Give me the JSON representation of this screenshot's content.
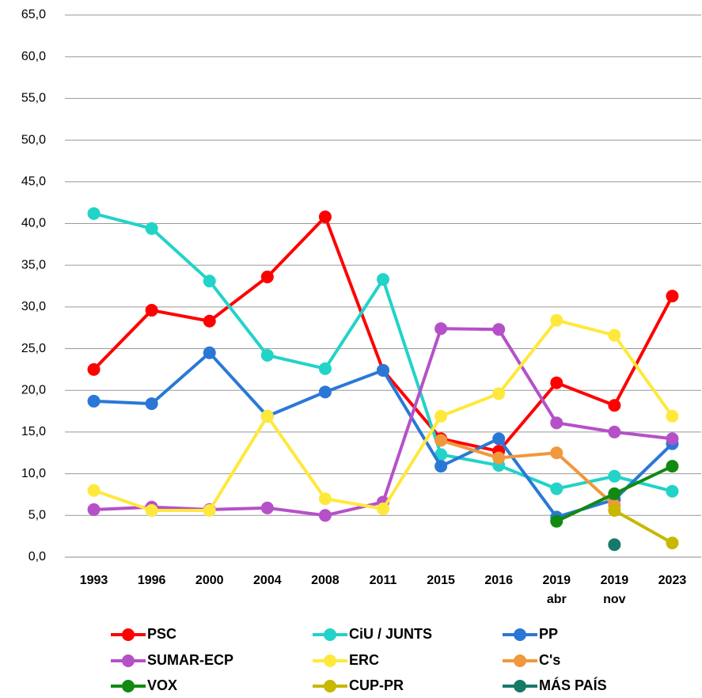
{
  "chart_data": {
    "type": "line",
    "categories": [
      "1993",
      "1996",
      "2000",
      "2004",
      "2008",
      "2011",
      "2015",
      "2016",
      "2019 abr",
      "2019 nov",
      "2023"
    ],
    "ylim": [
      0,
      65
    ],
    "yticks": [
      {
        "value": 0,
        "label": "0,0"
      },
      {
        "value": 5,
        "label": "5,0"
      },
      {
        "value": 10,
        "label": "10,0"
      },
      {
        "value": 15,
        "label": "15,0"
      },
      {
        "value": 20,
        "label": "20,0"
      },
      {
        "value": 25,
        "label": "25,0"
      },
      {
        "value": 30,
        "label": "30,0"
      },
      {
        "value": 35,
        "label": "35,0"
      },
      {
        "value": 40,
        "label": "40,0"
      },
      {
        "value": 45,
        "label": "45,0"
      },
      {
        "value": 50,
        "label": "50,0"
      },
      {
        "value": 55,
        "label": "55,0"
      },
      {
        "value": 60,
        "label": "60,0"
      },
      {
        "value": 65,
        "label": "65,0"
      }
    ],
    "grid": true,
    "legend": "bottom",
    "series": [
      {
        "name": "PSC",
        "color": "#ff0000",
        "values": [
          22.5,
          29.6,
          28.3,
          33.6,
          40.8,
          22.4,
          14.2,
          12.7,
          20.9,
          18.2,
          31.3
        ]
      },
      {
        "name": "CiU / JUNTS",
        "color": "#22d3c8",
        "values": [
          41.2,
          39.4,
          33.1,
          24.2,
          22.6,
          33.3,
          12.3,
          11.0,
          8.2,
          9.7,
          7.9
        ]
      },
      {
        "name": "PP",
        "color": "#2a78d6",
        "values": [
          18.7,
          18.4,
          24.5,
          16.9,
          19.8,
          22.4,
          10.9,
          14.2,
          4.8,
          6.9,
          13.6
        ]
      },
      {
        "name": "SUMAR-ECP",
        "color": "#b650c8",
        "values": [
          5.7,
          6.0,
          5.7,
          5.9,
          5.0,
          6.6,
          27.4,
          27.3,
          16.1,
          15.0,
          14.2
        ]
      },
      {
        "name": "ERC",
        "color": "#ffe83c",
        "values": [
          8.0,
          5.6,
          5.6,
          16.9,
          7.0,
          5.8,
          16.9,
          19.6,
          28.4,
          26.6,
          16.9
        ]
      },
      {
        "name": "C's",
        "color": "#f0983c",
        "values": [
          null,
          null,
          null,
          null,
          null,
          null,
          14.0,
          11.9,
          12.5,
          6.2,
          null
        ]
      },
      {
        "name": "VOX",
        "color": "#108a10",
        "values": [
          null,
          null,
          null,
          null,
          null,
          null,
          null,
          null,
          4.3,
          7.6,
          10.9
        ]
      },
      {
        "name": "CUP-PR",
        "color": "#c8b800",
        "values": [
          null,
          null,
          null,
          null,
          null,
          null,
          null,
          null,
          null,
          5.6,
          1.7
        ]
      },
      {
        "name": "MÁS PAÍS",
        "color": "#157a68",
        "values": [
          null,
          null,
          null,
          null,
          null,
          null,
          null,
          null,
          null,
          1.5,
          null
        ]
      }
    ]
  }
}
